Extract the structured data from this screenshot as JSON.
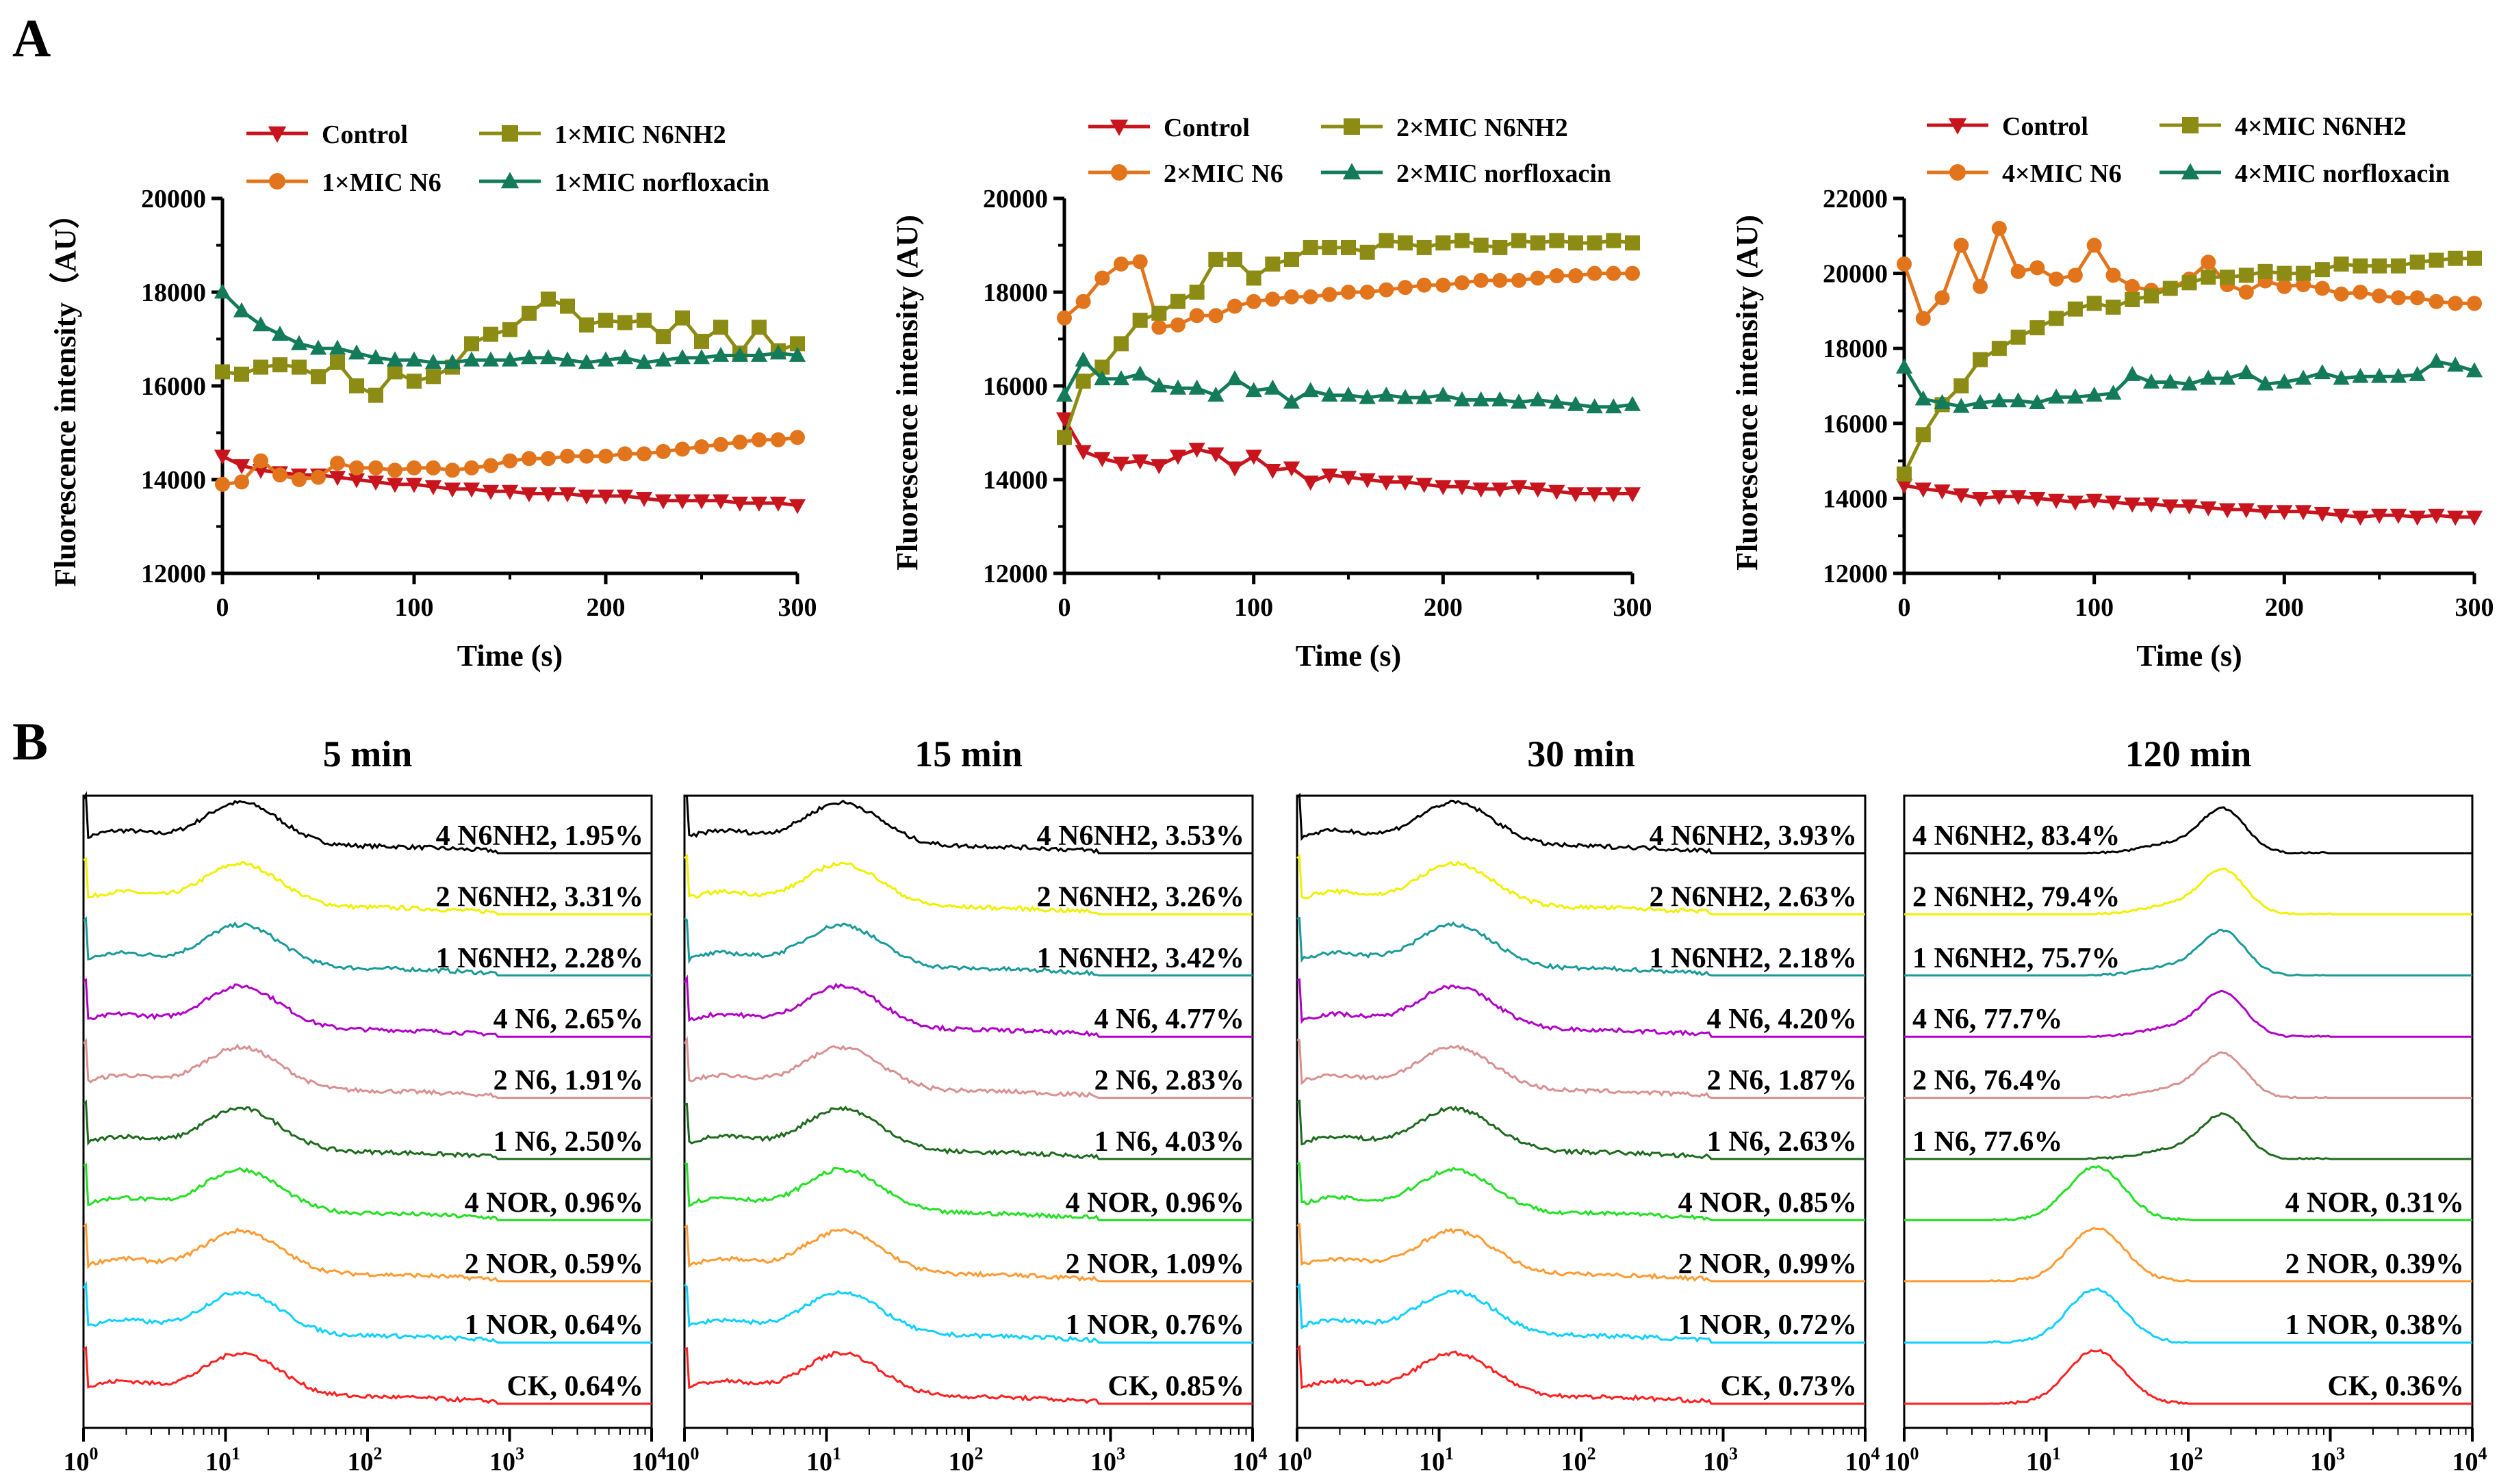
{
  "panel_letters": [
    "A",
    "B"
  ],
  "colors": {
    "control": "#c8141c",
    "n6": "#e2741c",
    "n6nh2": "#8c8c14",
    "norfloxacin": "#137a5a"
  },
  "chart_data": [
    {
      "type": "line",
      "panel": "A",
      "xlabel": "Time (s)",
      "ylabel": "Fluorescence intensity（AU）",
      "xlim": [
        0,
        300
      ],
      "ylim": [
        12000,
        20000
      ],
      "xticks": [
        0,
        100,
        200,
        300
      ],
      "yticks": [
        12000,
        14000,
        16000,
        18000,
        20000
      ],
      "x": [
        0,
        10,
        20,
        30,
        40,
        50,
        60,
        70,
        80,
        90,
        100,
        110,
        120,
        130,
        140,
        150,
        160,
        170,
        180,
        190,
        200,
        210,
        220,
        230,
        240,
        250,
        260,
        270,
        280,
        290,
        300
      ],
      "series": [
        {
          "name": "Control",
          "color": "#c8141c",
          "marker": "triangle-down",
          "values": [
            14500,
            14300,
            14200,
            14150,
            14100,
            14100,
            14050,
            14000,
            13950,
            13900,
            13900,
            13850,
            13800,
            13800,
            13750,
            13750,
            13700,
            13700,
            13700,
            13650,
            13650,
            13650,
            13600,
            13550,
            13550,
            13550,
            13550,
            13500,
            13500,
            13500,
            13450
          ]
        },
        {
          "name": "1×MIC N6",
          "color": "#e2741c",
          "marker": "circle",
          "values": [
            13900,
            13950,
            14400,
            14100,
            14000,
            14050,
            14350,
            14250,
            14250,
            14200,
            14250,
            14250,
            14200,
            14250,
            14300,
            14400,
            14450,
            14450,
            14500,
            14500,
            14500,
            14550,
            14550,
            14600,
            14650,
            14700,
            14750,
            14800,
            14850,
            14850,
            14900
          ]
        },
        {
          "name": "1×MIC N6NH2",
          "color": "#8c8c14",
          "marker": "square",
          "values": [
            16300,
            16250,
            16400,
            16450,
            16400,
            16200,
            16500,
            16000,
            15800,
            16300,
            16100,
            16200,
            16400,
            16900,
            17100,
            17200,
            17550,
            17850,
            17700,
            17300,
            17400,
            17350,
            17400,
            17050,
            17450,
            16950,
            17250,
            16700,
            17250,
            16750,
            16900
          ]
        },
        {
          "name": "1×MIC norfloxacin",
          "color": "#137a5a",
          "marker": "triangle-up",
          "values": [
            18000,
            17600,
            17300,
            17100,
            16900,
            16800,
            16800,
            16700,
            16600,
            16550,
            16550,
            16500,
            16500,
            16550,
            16550,
            16550,
            16600,
            16600,
            16550,
            16500,
            16550,
            16600,
            16500,
            16550,
            16600,
            16600,
            16650,
            16650,
            16650,
            16700,
            16650
          ]
        }
      ]
    },
    {
      "type": "line",
      "panel": "A",
      "xlabel": "Time (s)",
      "ylabel": "Fluorescence intensity (AU)",
      "xlim": [
        0,
        300
      ],
      "ylim": [
        12000,
        20000
      ],
      "xticks": [
        0,
        100,
        200,
        300
      ],
      "yticks": [
        12000,
        14000,
        16000,
        18000,
        20000
      ],
      "x": [
        0,
        10,
        20,
        30,
        40,
        50,
        60,
        70,
        80,
        90,
        100,
        110,
        120,
        130,
        140,
        150,
        160,
        170,
        180,
        190,
        200,
        210,
        220,
        230,
        240,
        250,
        260,
        270,
        280,
        290,
        300
      ],
      "series": [
        {
          "name": "Control",
          "color": "#c8141c",
          "marker": "triangle-down",
          "values": [
            15300,
            14600,
            14450,
            14350,
            14400,
            14300,
            14500,
            14650,
            14550,
            14250,
            14500,
            14200,
            14250,
            13950,
            14100,
            14050,
            14000,
            13950,
            13950,
            13900,
            13850,
            13850,
            13800,
            13800,
            13850,
            13800,
            13750,
            13700,
            13700,
            13700,
            13700
          ]
        },
        {
          "name": "2×MIC N6",
          "color": "#e2741c",
          "marker": "circle",
          "values": [
            17450,
            17800,
            18300,
            18600,
            18650,
            17250,
            17300,
            17500,
            17500,
            17700,
            17800,
            17850,
            17900,
            17900,
            17950,
            18000,
            18000,
            18050,
            18100,
            18150,
            18150,
            18200,
            18250,
            18250,
            18250,
            18300,
            18350,
            18350,
            18400,
            18400,
            18400
          ]
        },
        {
          "name": "2×MIC N6NH2",
          "color": "#8c8c14",
          "marker": "square",
          "values": [
            14900,
            16100,
            16400,
            16900,
            17400,
            17550,
            17800,
            18000,
            18700,
            18700,
            18300,
            18600,
            18700,
            18950,
            18950,
            18950,
            18850,
            19100,
            19050,
            18950,
            19050,
            19100,
            19000,
            18950,
            19100,
            19050,
            19100,
            19050,
            19050,
            19100,
            19050
          ]
        },
        {
          "name": "2×MIC norfloxacin",
          "color": "#137a5a",
          "marker": "triangle-up",
          "values": [
            15800,
            16550,
            16150,
            16150,
            16250,
            16000,
            15950,
            15950,
            15800,
            16150,
            15900,
            15950,
            15650,
            15900,
            15800,
            15800,
            15750,
            15800,
            15750,
            15750,
            15800,
            15700,
            15700,
            15700,
            15650,
            15700,
            15650,
            15600,
            15550,
            15550,
            15600
          ]
        }
      ]
    },
    {
      "type": "line",
      "panel": "A",
      "xlabel": "Time (s)",
      "ylabel": "Fluorescence intensity (AU)",
      "xlim": [
        0,
        300
      ],
      "ylim": [
        12000,
        22000
      ],
      "xticks": [
        0,
        100,
        200,
        300
      ],
      "yticks": [
        12000,
        14000,
        16000,
        18000,
        20000,
        22000
      ],
      "x": [
        0,
        10,
        20,
        30,
        40,
        50,
        60,
        70,
        80,
        90,
        100,
        110,
        120,
        130,
        140,
        150,
        160,
        170,
        180,
        190,
        200,
        210,
        220,
        230,
        240,
        250,
        260,
        270,
        280,
        290,
        300
      ],
      "series": [
        {
          "name": "Control",
          "color": "#c8141c",
          "marker": "triangle-down",
          "values": [
            14350,
            14250,
            14200,
            14100,
            14000,
            14050,
            14050,
            14000,
            13950,
            13900,
            13950,
            13900,
            13850,
            13850,
            13800,
            13800,
            13750,
            13700,
            13700,
            13650,
            13650,
            13650,
            13600,
            13550,
            13500,
            13550,
            13550,
            13500,
            13550,
            13500,
            13500
          ]
        },
        {
          "name": "4×MIC N6",
          "color": "#e2741c",
          "marker": "circle",
          "values": [
            20250,
            18800,
            19350,
            20750,
            19650,
            21200,
            20050,
            20150,
            19850,
            19950,
            20750,
            19950,
            19650,
            19550,
            19600,
            19850,
            20300,
            19700,
            19500,
            19800,
            19650,
            19700,
            19600,
            19450,
            19500,
            19400,
            19350,
            19350,
            19250,
            19200,
            19200
          ]
        },
        {
          "name": "4×MIC N6NH2",
          "color": "#8c8c14",
          "marker": "square",
          "values": [
            14650,
            15700,
            16500,
            17000,
            17700,
            18000,
            18300,
            18550,
            18800,
            19050,
            19200,
            19100,
            19300,
            19400,
            19600,
            19750,
            19900,
            19900,
            19950,
            20050,
            20000,
            20000,
            20100,
            20250,
            20200,
            20200,
            20200,
            20300,
            20350,
            20400,
            20400
          ]
        },
        {
          "name": "4×MIC norfloxacin",
          "color": "#137a5a",
          "marker": "triangle-up",
          "values": [
            17500,
            16650,
            16550,
            16450,
            16550,
            16600,
            16600,
            16550,
            16700,
            16700,
            16750,
            16800,
            17300,
            17100,
            17100,
            17050,
            17200,
            17200,
            17350,
            17050,
            17100,
            17200,
            17350,
            17200,
            17250,
            17250,
            17250,
            17300,
            17650,
            17550,
            17400
          ]
        }
      ]
    },
    {
      "type": "area",
      "panel": "B",
      "title": "5 min",
      "xscale": "log",
      "xlim": [
        1,
        10000
      ],
      "xtick_labels": [
        "10^0",
        "10^1",
        "10^2",
        "10^3",
        "10^4"
      ],
      "traces": [
        {
          "label": "4 N6NH2, 1.95%",
          "color": "#000000",
          "shift": "low"
        },
        {
          "label": "2 N6NH2, 3.31%",
          "color": "#f0f000",
          "shift": "low"
        },
        {
          "label": "1 N6NH2, 2.28%",
          "color": "#1a9a9a",
          "shift": "low"
        },
        {
          "label": "4 N6, 2.65%",
          "color": "#b000c8",
          "shift": "low"
        },
        {
          "label": "2 N6, 1.91%",
          "color": "#d89090",
          "shift": "low"
        },
        {
          "label": "1 N6, 2.50%",
          "color": "#1e6a1e",
          "shift": "low"
        },
        {
          "label": "4 NOR, 0.96%",
          "color": "#22e022",
          "shift": "low"
        },
        {
          "label": "2 NOR, 0.59%",
          "color": "#ff9a30",
          "shift": "low"
        },
        {
          "label": "1 NOR, 0.64%",
          "color": "#10d0ff",
          "shift": "low"
        },
        {
          "label": "CK, 0.64%",
          "color": "#ff2020",
          "shift": "low"
        }
      ]
    },
    {
      "type": "area",
      "panel": "B",
      "title": "15 min",
      "xscale": "log",
      "xlim": [
        1,
        10000
      ],
      "xtick_labels": [
        "10^0",
        "10^1",
        "10^2",
        "10^3",
        "10^4"
      ],
      "traces": [
        {
          "label": "4 N6NH2, 3.53%",
          "color": "#000000",
          "shift": "low"
        },
        {
          "label": "2 N6NH2, 3.26%",
          "color": "#f0f000",
          "shift": "low"
        },
        {
          "label": "1 N6NH2, 3.42%",
          "color": "#1a9a9a",
          "shift": "low"
        },
        {
          "label": "4 N6, 4.77%",
          "color": "#b000c8",
          "shift": "low"
        },
        {
          "label": "2 N6, 2.83%",
          "color": "#d89090",
          "shift": "low"
        },
        {
          "label": "1 N6, 4.03%",
          "color": "#1e6a1e",
          "shift": "low"
        },
        {
          "label": "4 NOR, 0.96%",
          "color": "#22e022",
          "shift": "low"
        },
        {
          "label": "2 NOR, 1.09%",
          "color": "#ff9a30",
          "shift": "low"
        },
        {
          "label": "1 NOR, 0.76%",
          "color": "#10d0ff",
          "shift": "low"
        },
        {
          "label": "CK, 0.85%",
          "color": "#ff2020",
          "shift": "low"
        }
      ]
    },
    {
      "type": "area",
      "panel": "B",
      "title": "30 min",
      "xscale": "log",
      "xlim": [
        1,
        10000
      ],
      "xtick_labels": [
        "10^0",
        "10^1",
        "10^2",
        "10^3",
        "10^4"
      ],
      "traces": [
        {
          "label": "4 N6NH2, 3.93%",
          "color": "#000000",
          "shift": "low"
        },
        {
          "label": "2 N6NH2, 2.63%",
          "color": "#f0f000",
          "shift": "low"
        },
        {
          "label": "1 N6NH2, 2.18%",
          "color": "#1a9a9a",
          "shift": "low"
        },
        {
          "label": "4 N6, 4.20%",
          "color": "#b000c8",
          "shift": "low"
        },
        {
          "label": "2 N6, 1.87%",
          "color": "#d89090",
          "shift": "low"
        },
        {
          "label": "1 N6, 2.63%",
          "color": "#1e6a1e",
          "shift": "low"
        },
        {
          "label": "4 NOR, 0.85%",
          "color": "#22e022",
          "shift": "low"
        },
        {
          "label": "2 NOR, 0.99%",
          "color": "#ff9a30",
          "shift": "low"
        },
        {
          "label": "1 NOR, 0.72%",
          "color": "#10d0ff",
          "shift": "low"
        },
        {
          "label": "CK, 0.73%",
          "color": "#ff2020",
          "shift": "low"
        }
      ]
    },
    {
      "type": "area",
      "panel": "B",
      "title": "120 min",
      "xscale": "log",
      "xlim": [
        1,
        10000
      ],
      "xtick_labels": [
        "10^0",
        "10^1",
        "10^2",
        "10^3",
        "10^4"
      ],
      "traces": [
        {
          "label": "4 N6NH2, 83.4%",
          "color": "#000000",
          "shift": "high"
        },
        {
          "label": "2 N6NH2, 79.4%",
          "color": "#f0f000",
          "shift": "high"
        },
        {
          "label": "1 N6NH2, 75.7%",
          "color": "#1a9a9a",
          "shift": "high"
        },
        {
          "label": "4 N6, 77.7%",
          "color": "#b000c8",
          "shift": "high"
        },
        {
          "label": "2 N6, 76.4%",
          "color": "#d89090",
          "shift": "high"
        },
        {
          "label": "1 N6, 77.6%",
          "color": "#1e6a1e",
          "shift": "high"
        },
        {
          "label": "4 NOR, 0.31%",
          "color": "#22e022",
          "shift": "mid"
        },
        {
          "label": "2 NOR, 0.39%",
          "color": "#ff9a30",
          "shift": "mid"
        },
        {
          "label": "1 NOR, 0.38%",
          "color": "#10d0ff",
          "shift": "mid"
        },
        {
          "label": "CK, 0.36%",
          "color": "#ff2020",
          "shift": "mid"
        }
      ]
    }
  ]
}
